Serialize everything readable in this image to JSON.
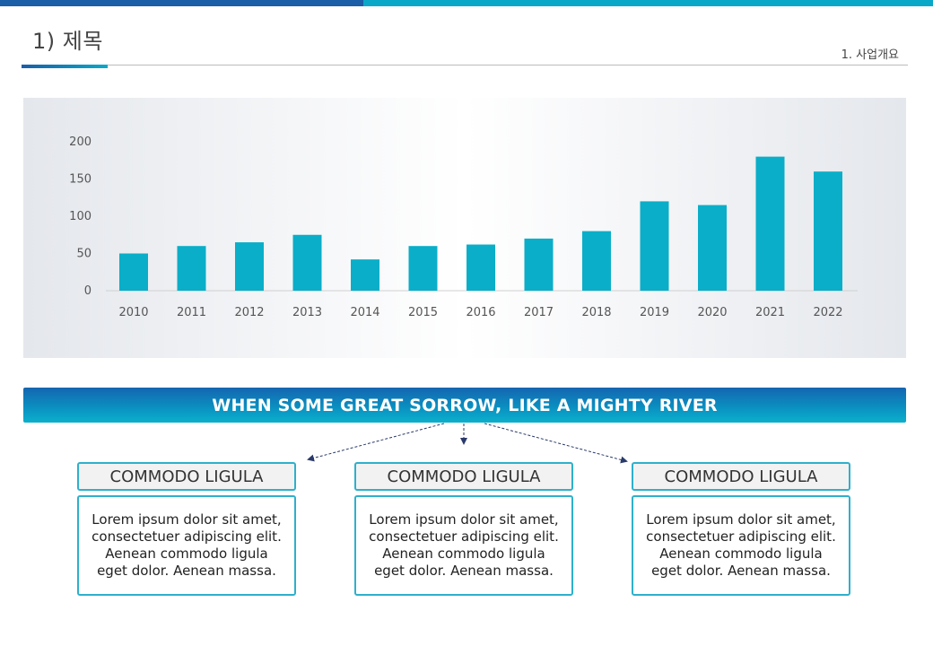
{
  "header": {
    "title": "1) 제목",
    "section": "1. 사업개요"
  },
  "colors": {
    "accent_dark": "#1a5ea8",
    "accent_light": "#0aa8c8",
    "bar": "#0aaec8"
  },
  "chart_data": {
    "type": "bar",
    "categories": [
      "2010",
      "2011",
      "2012",
      "2013",
      "2014",
      "2015",
      "2016",
      "2017",
      "2018",
      "2019",
      "2020",
      "2021",
      "2022"
    ],
    "values": [
      50,
      60,
      65,
      75,
      42,
      60,
      62,
      70,
      80,
      120,
      115,
      180,
      160
    ],
    "yticks": [
      0,
      50,
      100,
      150,
      200
    ],
    "ylim": [
      0,
      200
    ],
    "title": "",
    "xlabel": "",
    "ylabel": "",
    "grid": false
  },
  "banner": {
    "text": "WHEN SOME GREAT SORROW, LIKE A MIGHTY RIVER"
  },
  "cards": [
    {
      "title": "COMMODO LIGULA",
      "body": "Lorem ipsum dolor sit amet, consectetuer adipiscing elit. Aenean commodo ligula eget dolor. Aenean massa."
    },
    {
      "title": "COMMODO LIGULA",
      "body": "Lorem ipsum dolor sit amet, consectetuer adipiscing elit. Aenean commodo ligula eget dolor. Aenean massa."
    },
    {
      "title": "COMMODO LIGULA",
      "body": "Lorem ipsum dolor sit amet, consectetuer adipiscing elit. Aenean commodo ligula eget dolor. Aenean massa."
    }
  ]
}
